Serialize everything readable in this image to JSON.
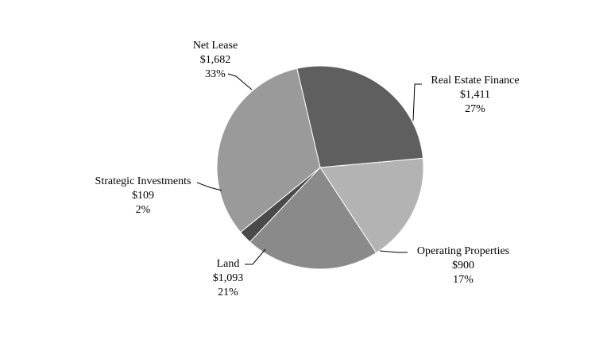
{
  "chart_data": {
    "type": "pie",
    "title": "",
    "slices": [
      {
        "name": "Real Estate Finance",
        "value": 1411,
        "value_label": "$1,411",
        "percent_label": "27%",
        "color": "#5f5f5f"
      },
      {
        "name": "Operating Properties",
        "value": 900,
        "value_label": "$900",
        "percent_label": "17%",
        "color": "#b3b3b3"
      },
      {
        "name": "Land",
        "value": 1093,
        "value_label": "$1,093",
        "percent_label": "21%",
        "color": "#8a8a8a"
      },
      {
        "name": "Strategic Investments",
        "value": 109,
        "value_label": "$109",
        "percent_label": "2%",
        "color": "#4a4a4a"
      },
      {
        "name": "Net Lease",
        "value": 1682,
        "value_label": "$1,682",
        "percent_label": "33%",
        "color": "#9a9a9a"
      }
    ]
  }
}
